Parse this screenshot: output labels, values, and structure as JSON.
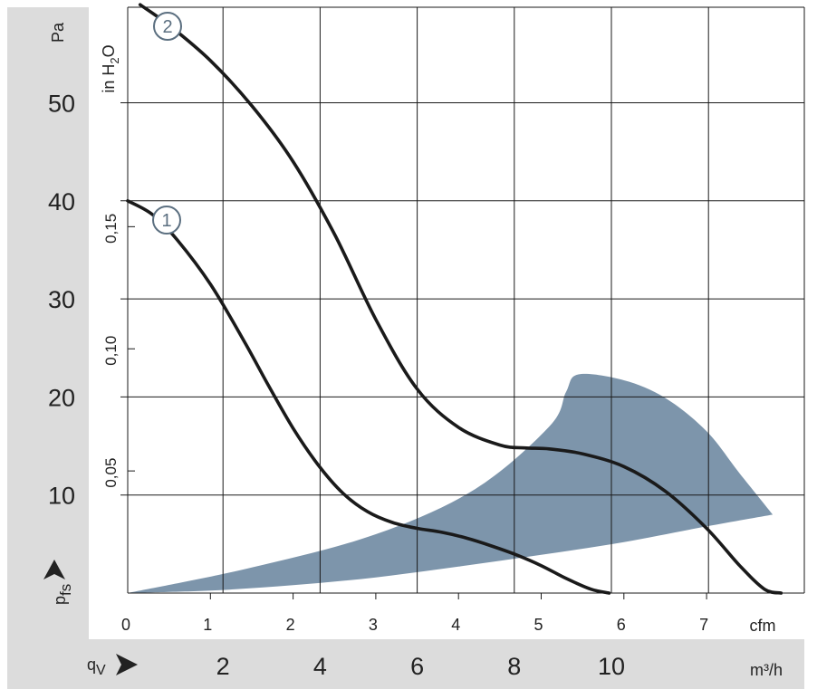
{
  "chart_data": {
    "type": "line",
    "title": "",
    "colors": {
      "operating_area": "#7d95ab",
      "panel": "#dcdcdc",
      "curves": "#1a1a1a",
      "label_ring": "#5b6f80"
    },
    "grid": true,
    "y_axis_left": {
      "unit": "Pa",
      "label": "p",
      "label_sub": "fs",
      "ticks": [
        "10",
        "20",
        "30",
        "40",
        "50"
      ],
      "range": [
        0,
        60
      ]
    },
    "y_axis_inner": {
      "unit": "in H",
      "unit_sub": "2",
      "unit_tail": "O",
      "ticks": [
        "0,05",
        "0,10",
        "0,15"
      ],
      "range": [
        0,
        0.241
      ]
    },
    "x_axis_cfm": {
      "unit": "cfm",
      "ticks": [
        "0",
        "1",
        "2",
        "3",
        "4",
        "5",
        "6",
        "7"
      ],
      "range": [
        0,
        7.9
      ]
    },
    "x_axis_m3h": {
      "unit": "m³/h",
      "label": "q",
      "label_sub": "V",
      "ticks": [
        "2",
        "4",
        "6",
        "8",
        "10"
      ]
    },
    "series": [
      {
        "name": "1",
        "x_cfm": [
          0,
          0.3,
          0.6,
          1.0,
          1.4,
          1.7,
          2.0,
          2.3,
          2.6,
          2.9,
          3.2,
          3.5,
          3.8,
          4.1,
          4.4,
          4.7,
          5.0,
          5.3,
          5.6,
          5.82
        ],
        "y_pa": [
          40,
          38.6,
          36.0,
          31.5,
          25.8,
          21.2,
          16.8,
          13.1,
          10.2,
          8.3,
          7.2,
          6.6,
          6.2,
          5.6,
          4.8,
          3.9,
          2.8,
          1.5,
          0.4,
          0
        ]
      },
      {
        "name": "2",
        "x_cfm": [
          0.15,
          0.5,
          1.0,
          1.5,
          2.0,
          2.5,
          3.0,
          3.5,
          4.0,
          4.5,
          4.8,
          5.1,
          5.5,
          6.0,
          6.5,
          7.0,
          7.4,
          7.7,
          7.9
        ],
        "y_pa": [
          60,
          57.9,
          54.3,
          49.7,
          44.0,
          36.6,
          27.9,
          20.8,
          16.9,
          15.1,
          14.8,
          14.7,
          14.2,
          12.9,
          10.4,
          6.6,
          2.8,
          0.4,
          0
        ]
      }
    ],
    "operating_area": {
      "name": "",
      "x_cfm": [
        0,
        1.5,
        3.0,
        4.2,
        5.1,
        5.3,
        5.45,
        6.0,
        6.5,
        7.0,
        7.4,
        7.8,
        7.8,
        7.0,
        6.0,
        5.0,
        4.0,
        3.0,
        2.0,
        1.0,
        0
      ],
      "y_pa": [
        0,
        2.6,
        6.0,
        10.6,
        17.0,
        20.5,
        22.3,
        21.7,
        19.9,
        16.5,
        12.2,
        8.0,
        8.0,
        6.8,
        5.2,
        3.9,
        2.7,
        1.6,
        0.8,
        0.25,
        0
      ]
    }
  }
}
